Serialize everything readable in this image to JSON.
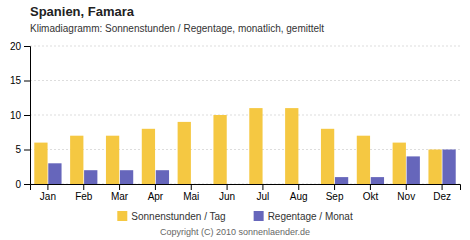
{
  "chart_data": {
    "type": "bar",
    "title": "Spanien, Famara",
    "subtitle": "Klimadiagramm: Sonnenstunden / Regentage, monatlich, gemittelt",
    "categories": [
      "Jan",
      "Feb",
      "Mar",
      "Apr",
      "Mai",
      "Jun",
      "Jul",
      "Aug",
      "Sep",
      "Okt",
      "Nov",
      "Dez"
    ],
    "series": [
      {
        "name": "Sonnenstunden / Tag",
        "color": "#F5C842",
        "values": [
          6,
          7,
          7,
          8,
          9,
          10,
          11,
          11,
          8,
          7,
          6,
          5
        ]
      },
      {
        "name": "Regentage / Monat",
        "color": "#6666BB",
        "values": [
          3,
          2,
          2,
          2,
          0,
          0,
          0,
          0,
          1,
          1,
          4,
          5
        ]
      }
    ],
    "ylim": [
      0,
      20
    ],
    "yticks": [
      0,
      5,
      10,
      15,
      20
    ],
    "grid": true,
    "legend": "bottom",
    "annotations": [
      "Copyright (C) 2010 sonnenlaender.de"
    ]
  }
}
